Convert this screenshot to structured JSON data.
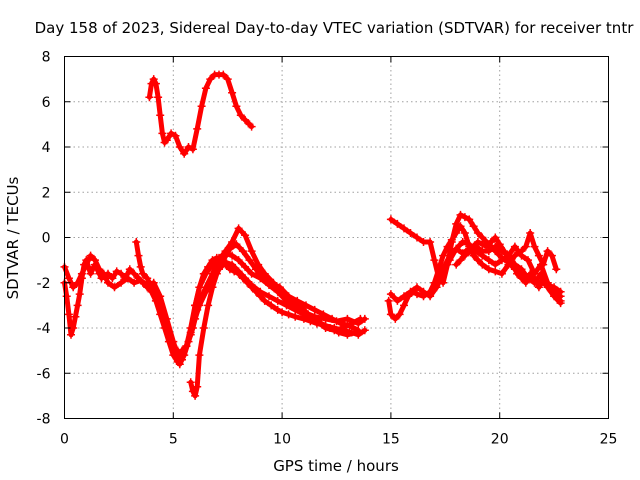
{
  "chart_data": {
    "type": "scatter",
    "title": "Day 158 of 2023, Sidereal Day-to-day VTEC variation (SDTVAR) for receiver tntr",
    "xlabel": "GPS time / hours",
    "ylabel": "SDTVAR / TECUs",
    "xlim": [
      0,
      25
    ],
    "ylim": [
      -8,
      8
    ],
    "xticks": [
      0,
      5,
      10,
      15,
      20,
      25
    ],
    "yticks": [
      -8,
      -6,
      -4,
      -2,
      0,
      2,
      4,
      6,
      8
    ],
    "grid": true,
    "color": "#ff0000",
    "marker": "plus",
    "series": [
      {
        "name": "trace-1",
        "x": [
          0.0,
          0.1,
          0.2,
          0.3,
          0.4,
          0.5,
          0.6,
          0.7,
          0.8,
          0.9,
          1.0,
          1.1,
          1.2,
          1.3,
          1.4,
          1.5,
          1.6,
          1.7,
          1.8,
          2.0,
          2.2,
          2.4,
          2.6,
          2.8,
          3.0,
          3.2,
          3.4,
          3.6,
          3.8,
          4.0,
          4.2,
          4.4,
          4.6,
          4.8,
          5.0,
          5.2,
          5.4,
          5.6,
          5.8,
          6.0,
          6.2,
          6.4,
          6.6,
          6.8,
          7.0,
          7.2,
          7.4,
          7.6,
          7.8,
          8.0,
          8.2,
          8.4,
          8.6,
          8.8,
          9.0,
          9.2,
          9.5,
          9.8,
          10.0,
          10.3,
          10.6,
          11.0,
          11.3,
          11.6,
          12.0,
          12.4,
          12.8,
          13.2,
          13.5,
          13.8
        ],
        "y": [
          -2.0,
          -2.6,
          -3.4,
          -4.3,
          -4.0,
          -3.5,
          -3.0,
          -2.5,
          -1.8,
          -1.2,
          -1.0,
          -1.3,
          -1.6,
          -1.4,
          -1.2,
          -1.4,
          -1.6,
          -1.8,
          -1.7,
          -1.6,
          -1.8,
          -1.5,
          -1.6,
          -1.8,
          -1.4,
          -1.6,
          -1.8,
          -2.0,
          -2.2,
          -2.4,
          -2.8,
          -3.4,
          -4.0,
          -4.6,
          -5.2,
          -5.5,
          -5.0,
          -4.8,
          -4.3,
          -3.0,
          -2.2,
          -1.6,
          -1.3,
          -1.0,
          -0.9,
          -1.1,
          -1.2,
          -1.4,
          -1.5,
          -1.6,
          -1.8,
          -2.0,
          -2.2,
          -2.4,
          -2.6,
          -2.8,
          -3.0,
          -3.2,
          -3.3,
          -3.4,
          -3.5,
          -3.6,
          -3.7,
          -3.8,
          -3.9,
          -4.0,
          -4.1,
          -4.2,
          -4.3,
          -4.1
        ]
      },
      {
        "name": "trace-2",
        "x": [
          0.0,
          0.2,
          0.4,
          0.6,
          0.8,
          1.0,
          1.2,
          1.4,
          1.6,
          1.8,
          2.0,
          2.3,
          2.6,
          2.9,
          3.2,
          3.5,
          3.8,
          4.1,
          4.4,
          4.7,
          5.0,
          5.2,
          5.4,
          5.6,
          5.8,
          6.0,
          6.2,
          6.5,
          6.8,
          7.1,
          7.4,
          7.7,
          8.0,
          8.3,
          8.6,
          9.0,
          9.4,
          9.8,
          10.2,
          10.6,
          11.0,
          11.5,
          12.0,
          12.5,
          13.0,
          13.5,
          13.8
        ],
        "y": [
          -1.3,
          -1.8,
          -2.2,
          -2.0,
          -1.6,
          -1.2,
          -0.8,
          -1.0,
          -1.4,
          -1.6,
          -2.0,
          -2.2,
          -2.0,
          -1.8,
          -2.0,
          -1.9,
          -2.1,
          -2.0,
          -2.6,
          -3.6,
          -4.6,
          -5.2,
          -5.4,
          -4.8,
          -4.0,
          -3.0,
          -2.2,
          -1.6,
          -1.2,
          -0.9,
          -0.7,
          -0.8,
          -1.0,
          -1.3,
          -1.6,
          -1.8,
          -2.1,
          -2.4,
          -2.8,
          -3.0,
          -3.3,
          -3.5,
          -3.6,
          -3.7,
          -3.6,
          -3.8,
          -3.6
        ]
      },
      {
        "name": "trace-3",
        "x": [
          5.3,
          5.5,
          5.7,
          5.9,
          6.1,
          6.3,
          6.5,
          6.8,
          7.1,
          7.4,
          7.7,
          8.0,
          8.3,
          8.6,
          8.9,
          9.2,
          9.6,
          10.0,
          10.4,
          10.8,
          11.2,
          11.6,
          12.0,
          12.4,
          12.8,
          13.2,
          13.6
        ],
        "y": [
          -5.6,
          -5.2,
          -4.6,
          -4.0,
          -3.2,
          -2.6,
          -2.2,
          -1.6,
          -1.0,
          -0.6,
          -0.2,
          0.4,
          0.1,
          -0.6,
          -1.2,
          -1.6,
          -2.0,
          -2.4,
          -2.8,
          -3.0,
          -3.4,
          -3.7,
          -4.0,
          -4.1,
          -4.0,
          -3.8,
          -3.6
        ]
      },
      {
        "name": "trace-4",
        "x": [
          5.8,
          5.9,
          6.0,
          6.1,
          6.2,
          6.4,
          6.6,
          6.8,
          7.0,
          7.3,
          7.6,
          7.9,
          8.2,
          8.5,
          8.8,
          9.1,
          9.5,
          9.9,
          10.3,
          10.7,
          11.1,
          11.5,
          11.9,
          12.3,
          12.7,
          13.1,
          13.5
        ],
        "y": [
          -6.4,
          -6.8,
          -7.0,
          -6.6,
          -5.2,
          -4.0,
          -3.0,
          -2.2,
          -1.6,
          -1.0,
          -0.5,
          -0.3,
          -0.6,
          -1.0,
          -1.4,
          -1.8,
          -2.0,
          -2.2,
          -2.6,
          -2.8,
          -3.0,
          -3.2,
          -3.4,
          -3.6,
          -3.8,
          -3.9,
          -4.1
        ]
      },
      {
        "name": "trace-5",
        "x": [
          3.3,
          3.4,
          3.5,
          3.6,
          3.8,
          4.0,
          4.2,
          4.4,
          4.6,
          4.8,
          5.0,
          5.2,
          5.4,
          5.6,
          5.8,
          6.0,
          6.2,
          6.5,
          6.8,
          7.1,
          7.4,
          7.7,
          8.0,
          8.3,
          8.6,
          9.0,
          9.4,
          9.8,
          10.2,
          10.6,
          11.0,
          11.4,
          11.8,
          12.2,
          12.6,
          13.0,
          13.4
        ],
        "y": [
          -0.2,
          -0.8,
          -1.3,
          -1.6,
          -1.8,
          -2.2,
          -2.6,
          -3.0,
          -3.6,
          -4.2,
          -4.8,
          -5.0,
          -5.2,
          -4.8,
          -4.2,
          -3.6,
          -3.0,
          -2.4,
          -1.9,
          -1.4,
          -1.1,
          -1.2,
          -1.5,
          -1.8,
          -2.1,
          -2.4,
          -2.6,
          -2.8,
          -3.0,
          -3.2,
          -3.4,
          -3.6,
          -3.8,
          -4.0,
          -4.2,
          -4.3,
          -4.2
        ]
      },
      {
        "name": "trace-6",
        "x": [
          3.9,
          4.0,
          4.1,
          4.2,
          4.3,
          4.4,
          4.5,
          4.6,
          4.7,
          4.9,
          5.1,
          5.3,
          5.5,
          5.7,
          5.9,
          6.1,
          6.3,
          6.5,
          6.7,
          6.9,
          7.1,
          7.3,
          7.5,
          7.7,
          7.9,
          8.1,
          8.3,
          8.5,
          8.6
        ],
        "y": [
          6.2,
          6.8,
          7.0,
          6.8,
          6.2,
          5.4,
          4.6,
          4.2,
          4.3,
          4.6,
          4.5,
          4.0,
          3.7,
          4.0,
          3.9,
          4.8,
          5.8,
          6.6,
          7.0,
          7.2,
          7.2,
          7.2,
          7.0,
          6.4,
          5.8,
          5.4,
          5.2,
          5.0,
          4.9
        ]
      },
      {
        "name": "trace-7",
        "x": [
          14.9,
          15.0,
          15.2,
          15.4,
          15.6,
          15.8,
          16.0,
          16.2,
          16.5,
          16.8,
          17.1,
          17.4,
          17.7,
          18.0,
          18.3,
          18.6,
          18.9,
          19.2,
          19.5,
          19.8,
          20.1,
          20.4,
          20.7,
          21.0,
          21.3,
          21.6,
          21.9,
          22.2,
          22.5,
          22.8
        ],
        "y": [
          -2.8,
          -3.4,
          -3.6,
          -3.4,
          -3.0,
          -2.6,
          -2.4,
          -2.5,
          -2.6,
          -2.4,
          -2.0,
          -1.4,
          -0.8,
          -0.5,
          -0.7,
          -0.5,
          -0.4,
          -0.6,
          -0.6,
          -0.4,
          -0.6,
          -0.8,
          -0.4,
          -0.8,
          -1.0,
          -1.6,
          -1.2,
          -2.0,
          -2.4,
          -2.6
        ]
      },
      {
        "name": "trace-8",
        "x": [
          15.0,
          15.3,
          15.6,
          15.9,
          16.2,
          16.5,
          16.8,
          17.1,
          17.4,
          17.7,
          18.0,
          18.3,
          18.6,
          18.9,
          19.2,
          19.5,
          19.8,
          20.1,
          20.4,
          20.7,
          21.0,
          21.3,
          21.6,
          21.9,
          22.2,
          22.5,
          22.8
        ],
        "y": [
          -2.5,
          -2.8,
          -2.6,
          -2.4,
          -2.2,
          -2.4,
          -2.6,
          -2.2,
          -1.6,
          -1.0,
          -0.5,
          -0.2,
          -0.3,
          -0.6,
          -0.8,
          -1.0,
          -1.2,
          -1.0,
          -0.8,
          -1.2,
          -1.4,
          -1.8,
          -2.0,
          -1.6,
          -2.2,
          -2.6,
          -2.9
        ]
      },
      {
        "name": "trace-9",
        "x": [
          15.0,
          15.3,
          15.6,
          15.9,
          16.2,
          16.5,
          16.8,
          17.0,
          17.2,
          17.4,
          17.6,
          17.8,
          18.0,
          18.2,
          18.4,
          18.6,
          18.8,
          19.0,
          19.2,
          19.5,
          19.8,
          20.1,
          20.4,
          20.7,
          21.0,
          21.3,
          21.6,
          21.9,
          22.2,
          22.5,
          22.8
        ],
        "y": [
          0.8,
          0.6,
          0.4,
          0.2,
          0.0,
          -0.2,
          -0.2,
          -1.0,
          -1.8,
          -2.0,
          -1.2,
          -0.2,
          0.6,
          1.0,
          0.9,
          0.8,
          0.5,
          0.2,
          0.0,
          -0.3,
          -0.6,
          -0.9,
          -1.1,
          -1.4,
          -1.6,
          -1.8,
          -1.9,
          -2.0,
          -2.1,
          -2.2,
          -2.4
        ]
      },
      {
        "name": "trace-10",
        "x": [
          16.8,
          17.0,
          17.2,
          17.4,
          17.6,
          17.8,
          18.0,
          18.2,
          18.4,
          18.6,
          18.8,
          19.0,
          19.2,
          19.5,
          19.8,
          20.1,
          20.4,
          20.7,
          21.0,
          21.2,
          21.4,
          21.6,
          21.8,
          22.0,
          22.2,
          22.4,
          22.6
        ],
        "y": [
          -2.4,
          -2.0,
          -1.4,
          -0.8,
          -0.4,
          -0.1,
          0.2,
          0.5,
          0.2,
          -0.4,
          -0.8,
          -1.0,
          -1.2,
          -1.4,
          -1.5,
          -1.6,
          -1.2,
          -0.8,
          -0.6,
          -0.4,
          0.2,
          -0.4,
          -0.8,
          -1.2,
          -0.6,
          -0.8,
          -1.4
        ]
      },
      {
        "name": "trace-11",
        "x": [
          18.0,
          18.2,
          18.4,
          18.6,
          18.8,
          19.0,
          19.2,
          19.4,
          19.6,
          19.8,
          20.0,
          20.2,
          20.4,
          20.6,
          20.8,
          21.0,
          21.2,
          21.4,
          21.6,
          21.8,
          22.0,
          22.2,
          22.4,
          22.6,
          22.8
        ],
        "y": [
          -1.2,
          -1.0,
          -0.8,
          -0.6,
          -0.4,
          -0.2,
          -0.3,
          -0.4,
          -0.2,
          0.0,
          -0.3,
          -0.6,
          -0.9,
          -1.2,
          -1.6,
          -1.8,
          -2.0,
          -1.6,
          -1.8,
          -2.2,
          -1.8,
          -2.0,
          -2.4,
          -2.6,
          -2.8
        ]
      }
    ]
  }
}
